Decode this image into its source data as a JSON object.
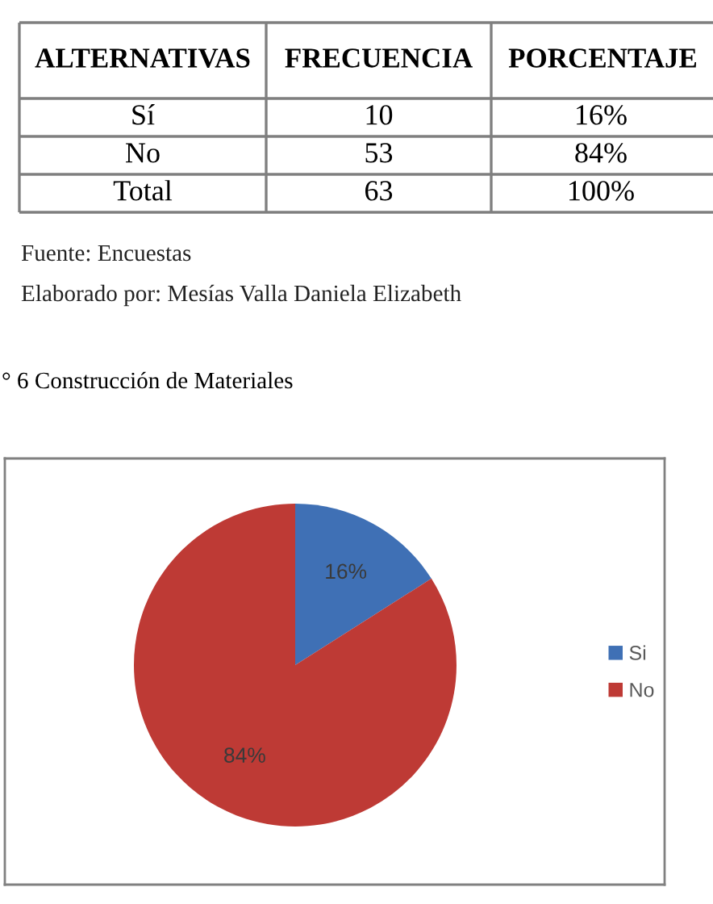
{
  "chart_data": [
    {
      "type": "other",
      "xlabel": "ALTERNATIVAS",
      "categories": [
        "Sí",
        "No",
        "Total"
      ],
      "data_labels": true,
      "series": [
        {
          "name": "FRECUENCIA",
          "values": [
            10,
            53,
            63
          ]
        },
        {
          "name": "PORCENTAJE",
          "values": [
            16,
            84,
            100
          ],
          "value_labels": [
            "16%",
            "84%",
            "100%"
          ]
        }
      ],
      "annotations": [
        "Fuente: Encuestas",
        "Elaborado por: Mesías Valla Daniela Elizabeth"
      ]
    },
    {
      "type": "pie",
      "title": "° 6 Construcción de Materiales",
      "categories": [
        "Si",
        "No"
      ],
      "values": [
        16,
        84
      ],
      "colors": [
        "#3f70b5",
        "#be3a35"
      ],
      "value_labels": [
        "16%",
        "84%"
      ],
      "legend": "right"
    }
  ]
}
